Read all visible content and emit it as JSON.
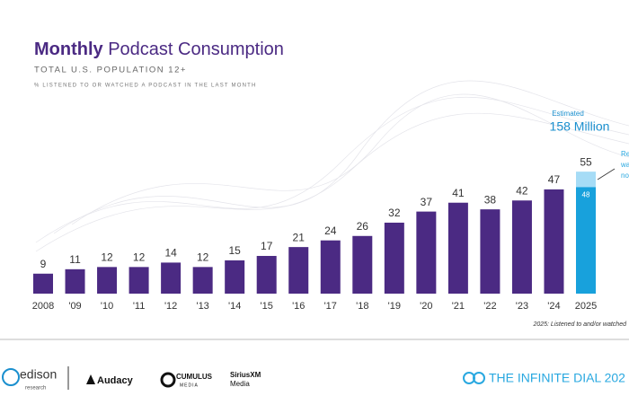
{
  "chart_data": {
    "type": "bar",
    "title": {
      "emphasis": "Monthly",
      "rest": "Podcast Consumption"
    },
    "subtitle": "TOTAL U.S. POPULATION 12+",
    "caption": "% LISTENED TO OR WATCHED A PODCAST IN THE LAST MONTH",
    "categories": [
      "2008",
      "'09",
      "'10",
      "'11",
      "'12",
      "'13",
      "'14",
      "'15",
      "'16",
      "'17",
      "'18",
      "'19",
      "'20",
      "'21",
      "'22",
      "'23",
      "'24",
      "2025"
    ],
    "values": [
      9,
      11,
      12,
      12,
      14,
      12,
      15,
      17,
      21,
      24,
      26,
      32,
      37,
      41,
      38,
      42,
      47,
      55
    ],
    "colors": [
      "#4b2a83",
      "#4b2a83",
      "#4b2a83",
      "#4b2a83",
      "#4b2a83",
      "#4b2a83",
      "#4b2a83",
      "#4b2a83",
      "#4b2a83",
      "#4b2a83",
      "#4b2a83",
      "#4b2a83",
      "#4b2a83",
      "#4b2a83",
      "#4b2a83",
      "#4b2a83",
      "#4b2a83",
      "#a6dcf6"
    ],
    "inner_values": [
      null,
      null,
      null,
      null,
      null,
      null,
      null,
      null,
      null,
      null,
      null,
      null,
      null,
      null,
      null,
      null,
      null,
      48
    ],
    "inner_color": "#18a1dc",
    "estimate": {
      "label": "Estimated",
      "value_label": "158 Million"
    },
    "side_note": [
      "Re",
      "wa",
      "no"
    ],
    "footnote": "2025: Listened to and/or watched"
  },
  "footer": {
    "brands": [
      "edison",
      "research",
      "Audacy",
      "CUMULUS",
      "MEDIA",
      "SiriusXM",
      "Media"
    ],
    "event": "THE INFINITE DIAL 202"
  }
}
